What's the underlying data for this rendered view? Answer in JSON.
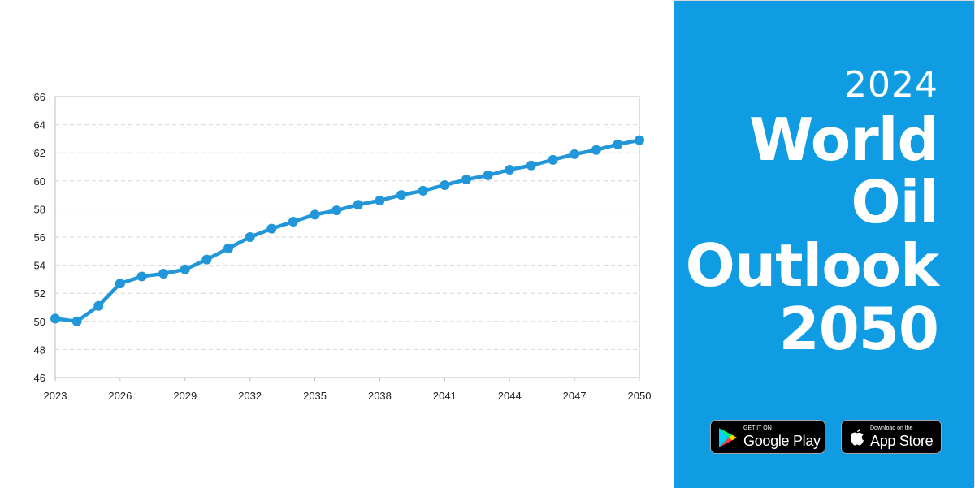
{
  "chart_data": {
    "type": "line",
    "title": "",
    "xlabel": "",
    "ylabel": "",
    "x": [
      2023,
      2024,
      2025,
      2026,
      2027,
      2028,
      2029,
      2030,
      2031,
      2032,
      2033,
      2034,
      2035,
      2036,
      2037,
      2038,
      2039,
      2040,
      2041,
      2042,
      2043,
      2044,
      2045,
      2046,
      2047,
      2048,
      2049,
      2050
    ],
    "values": [
      50.2,
      50.0,
      51.1,
      52.7,
      53.2,
      53.4,
      53.7,
      54.4,
      55.2,
      56.0,
      56.6,
      57.1,
      57.6,
      57.9,
      58.3,
      58.6,
      59.0,
      59.3,
      59.7,
      60.1,
      60.4,
      60.8,
      61.1,
      61.5,
      61.9,
      62.2,
      62.6,
      62.9
    ],
    "xticks": [
      "2023",
      "2026",
      "2029",
      "2032",
      "2035",
      "2038",
      "2041",
      "2044",
      "2047",
      "2050"
    ],
    "yticks": [
      "46",
      "48",
      "50",
      "52",
      "54",
      "56",
      "58",
      "60",
      "62",
      "64",
      "66"
    ],
    "xlim": [
      2023,
      2050
    ],
    "ylim": [
      46,
      66
    ],
    "grid": true,
    "legend": "none",
    "colors": {
      "line": "#2196d8",
      "grid": "#d6d6d6",
      "axis": "#bcbcbc"
    }
  },
  "panel": {
    "background": "#109ce3",
    "year": "2024",
    "title_lines": [
      "World",
      "Oil",
      "Outlook",
      "2050"
    ]
  },
  "badges": {
    "google": {
      "small": "GET IT ON",
      "big": "Google Play",
      "icon": "google-play-icon"
    },
    "apple": {
      "small": "Download on the",
      "big": "App Store",
      "icon": "apple-icon"
    }
  }
}
